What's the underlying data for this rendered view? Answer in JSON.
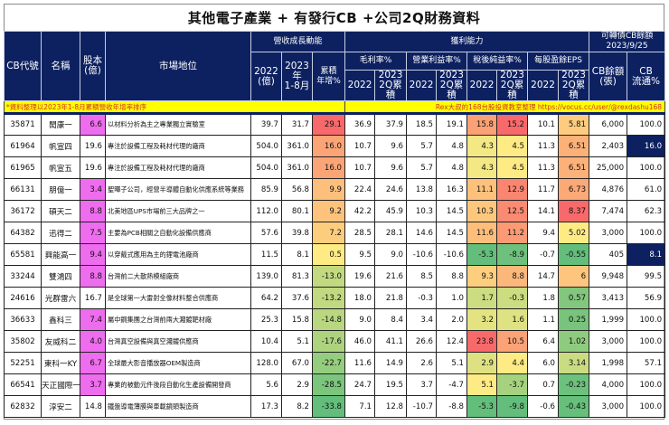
{
  "title": "其他電子產業 + 有發行CB +公司2Q財務資料",
  "header": {
    "cb_code": "CB代號",
    "name": "名稱",
    "capital": "股本\n(億)",
    "capital_line1": "股本",
    "capital_line2": "(億)",
    "market_position": "市場地位",
    "revenue_group": "營收成長動能",
    "rev_2022_l1": "2022",
    "rev_2022_l2": "(億)",
    "rev_2023_l1": "2023年",
    "rev_2023_l2": "1-8月",
    "rev_growth_l1": "累積",
    "rev_growth_l2": "年增%",
    "profit_group": "獲利能力",
    "gross_margin": "毛利率%",
    "operating_margin": "營業利益率%",
    "net_margin": "稅後純益率%",
    "eps": "每股盈餘EPS",
    "y2022": "2022",
    "y2023_l1": "2023",
    "y2023_l2": "2Q累積",
    "cb_group_l1": "可轉債CB餘額",
    "cb_group_l2": "2023/9/25",
    "cb_balance_l1": "CB餘額",
    "cb_balance_l2": "(張)",
    "cb_float_l1": "CB",
    "cb_float_l2": "流通%"
  },
  "note_left": "*資料整理以2023年1-8月累積營收年增率排序",
  "note_right": "Rex大叔的168台股投資教室整理 https://vocus.cc/user/@rexdashu168",
  "colors": {
    "header_bg": "#0d2161",
    "note_bg": "#ffff00",
    "note_text": "#d0302a",
    "capital_highlight": "#ee6cee",
    "float_highlight": "#0d2161"
  },
  "rows": [
    {
      "code": "35871",
      "name": "閎康一",
      "capital": "6.6",
      "cap_hl": true,
      "position": "以材料分析為主之專業獨立實驗室",
      "rev2022": "39.7",
      "rev2023": "31.7",
      "growth": "29.1",
      "gm2022": "36.9",
      "gm2023": "37.9",
      "om2022": "18.5",
      "om2023": "19.1",
      "nm2022": "15.8",
      "nm2023": "15.2",
      "eps2022": "10.1",
      "eps2023": "5.81",
      "cb_balance": "6,000",
      "cb_float": "100.0",
      "float_hl": false
    },
    {
      "code": "61964",
      "name": "帆宣四",
      "capital": "19.6",
      "cap_hl": false,
      "position": "專注於設備工程及耗材代理的廠商",
      "rev2022": "504.0",
      "rev2023": "361.0",
      "growth": "16.0",
      "gm2022": "10.7",
      "gm2023": "9.6",
      "om2022": "5.7",
      "om2023": "4.8",
      "nm2022": "4.3",
      "nm2023": "4.5",
      "eps2022": "11.3",
      "eps2023": "6.51",
      "cb_balance": "2,403",
      "cb_float": "16.0",
      "float_hl": true
    },
    {
      "code": "61965",
      "name": "帆宣五",
      "capital": "19.6",
      "cap_hl": false,
      "position": "專注於設備工程及耗材代理的廠商",
      "rev2022": "504.0",
      "rev2023": "361.0",
      "growth": "16.0",
      "gm2022": "10.7",
      "gm2023": "9.6",
      "om2022": "5.7",
      "om2023": "4.8",
      "nm2022": "4.3",
      "nm2023": "4.5",
      "eps2022": "11.3",
      "eps2023": "6.51",
      "cb_balance": "25,000",
      "cb_float": "100.0",
      "float_hl": false
    },
    {
      "code": "66131",
      "name": "朋億一",
      "capital": "3.4",
      "cap_hl": true,
      "position": "聖暉子公司，經營半導體自動化供應系統等業務",
      "rev2022": "85.9",
      "rev2023": "56.8",
      "growth": "9.9",
      "gm2022": "22.4",
      "gm2023": "24.6",
      "om2022": "13.8",
      "om2023": "16.3",
      "nm2022": "11.1",
      "nm2023": "12.9",
      "eps2022": "11.7",
      "eps2023": "6.73",
      "cb_balance": "4,876",
      "cb_float": "61.0",
      "float_hl": false
    },
    {
      "code": "36172",
      "name": "碩天二",
      "capital": "8.8",
      "cap_hl": true,
      "position": "北美地區UPS市場前三大品牌之一",
      "rev2022": "112.0",
      "rev2023": "80.1",
      "growth": "9.2",
      "gm2022": "42.2",
      "gm2023": "45.9",
      "om2022": "10.3",
      "om2023": "14.5",
      "nm2022": "10.3",
      "nm2023": "12.5",
      "eps2022": "14.1",
      "eps2023": "8.37",
      "cb_balance": "7,474",
      "cb_float": "62.3",
      "float_hl": false
    },
    {
      "code": "64382",
      "name": "迅得二",
      "capital": "7.5",
      "cap_hl": true,
      "position": "主要為PCB相關之自動化設備供應商",
      "rev2022": "57.6",
      "rev2023": "39.8",
      "growth": "7.2",
      "gm2022": "28.5",
      "gm2023": "28.1",
      "om2022": "14.6",
      "om2023": "14.5",
      "nm2022": "11.6",
      "nm2023": "11.2",
      "eps2022": "9.4",
      "eps2023": "5.02",
      "cb_balance": "3,000",
      "cb_float": "100.0",
      "float_hl": false
    },
    {
      "code": "65581",
      "name": "興能高一",
      "capital": "9.4",
      "cap_hl": true,
      "position": "以穿戴式應用為主的鋰電池廠商",
      "rev2022": "11.5",
      "rev2023": "8.1",
      "growth": "0.5",
      "gm2022": "9.5",
      "gm2023": "9.0",
      "om2022": "-10.6",
      "om2023": "-10.6",
      "nm2022": "-5.3",
      "nm2023": "-8.9",
      "eps2022": "-0.7",
      "eps2023": "-0.55",
      "cb_balance": "405",
      "cb_float": "8.1",
      "float_hl": true
    },
    {
      "code": "33244",
      "name": "雙鴻四",
      "capital": "8.8",
      "cap_hl": true,
      "position": "台灣前二大散熱模組廠商",
      "rev2022": "139.0",
      "rev2023": "81.3",
      "growth": "-13.0",
      "gm2022": "19.6",
      "gm2023": "21.6",
      "om2022": "8.5",
      "om2023": "8.8",
      "nm2022": "9.3",
      "nm2023": "8.8",
      "eps2022": "14.7",
      "eps2023": "6",
      "cb_balance": "9,948",
      "cb_float": "99.5",
      "float_hl": false
    },
    {
      "code": "24616",
      "name": "光群雷六",
      "capital": "16.7",
      "cap_hl": false,
      "position": "是全球第一大雷射全像材料整合供應商",
      "rev2022": "64.2",
      "rev2023": "37.6",
      "growth": "-13.2",
      "gm2022": "18.0",
      "gm2023": "21.8",
      "om2022": "-0.3",
      "om2023": "1.0",
      "nm2022": "1.7",
      "nm2023": "-0.3",
      "eps2022": "1.8",
      "eps2023": "0.57",
      "cb_balance": "3,413",
      "cb_float": "56.9",
      "float_hl": false
    },
    {
      "code": "36633",
      "name": "鑫科三",
      "capital": "7.4",
      "cap_hl": true,
      "position": "屬中鋼集團之台灣前兩大濺鍍靶材廠",
      "rev2022": "25.3",
      "rev2023": "15.8",
      "growth": "-14.8",
      "gm2022": "9.0",
      "gm2023": "8.4",
      "om2022": "3.4",
      "om2023": "2.0",
      "nm2022": "3.2",
      "nm2023": "1.6",
      "eps2022": "1.1",
      "eps2023": "0.25",
      "cb_balance": "1,999",
      "cb_float": "100.0",
      "float_hl": false
    },
    {
      "code": "35802",
      "name": "友威科二",
      "capital": "4.0",
      "cap_hl": true,
      "position": "台灣真空設備與真空濺鍍供應商",
      "rev2022": "10.4",
      "rev2023": "5.1",
      "growth": "-17.6",
      "gm2022": "46.0",
      "gm2023": "41.1",
      "om2022": "26.6",
      "om2023": "12.4",
      "nm2022": "23.8",
      "nm2023": "10.5",
      "eps2022": "6.4",
      "eps2023": "1.02",
      "cb_balance": "3,000",
      "cb_float": "100.0",
      "float_hl": false
    },
    {
      "code": "52251",
      "name": "東科一KY",
      "capital": "6.7",
      "cap_hl": true,
      "position": "全球最大影音播放器OEM製造商",
      "rev2022": "128.0",
      "rev2023": "67.0",
      "growth": "-22.7",
      "gm2022": "11.6",
      "gm2023": "14.9",
      "om2022": "2.6",
      "om2023": "5.1",
      "nm2022": "2.9",
      "nm2023": "4.4",
      "eps2022": "6.0",
      "eps2023": "3.14",
      "cb_balance": "1,998",
      "cb_float": "57.1",
      "float_hl": false
    },
    {
      "code": "66541",
      "name": "天正國際一",
      "capital": "3.7",
      "cap_hl": true,
      "position": "專業的被動元件後段自動化生產設備開發商",
      "rev2022": "5.6",
      "rev2023": "2.9",
      "growth": "-28.5",
      "gm2022": "24.7",
      "gm2023": "19.5",
      "om2022": "3.7",
      "om2023": "-4.7",
      "nm2022": "5.1",
      "nm2023": "-3.7",
      "eps2022": "0.7",
      "eps2023": "-0.23",
      "cb_balance": "4,000",
      "cb_float": "100.0",
      "float_hl": false
    },
    {
      "code": "62832",
      "name": "淳安二",
      "capital": "14.8",
      "cap_hl": false,
      "position": "鐵盤導電薄膜與車載鏡頭製造商",
      "rev2022": "17.3",
      "rev2023": "8.2",
      "growth": "-33.8",
      "gm2022": "7.1",
      "gm2023": "12.8",
      "om2022": "-10.7",
      "om2023": "-8.8",
      "nm2022": "-5.3",
      "nm2023": "-9.8",
      "eps2022": "-0.6",
      "eps2023": "-0.43",
      "cb_balance": "3,000",
      "cb_float": "100.0",
      "float_hl": false
    }
  ]
}
